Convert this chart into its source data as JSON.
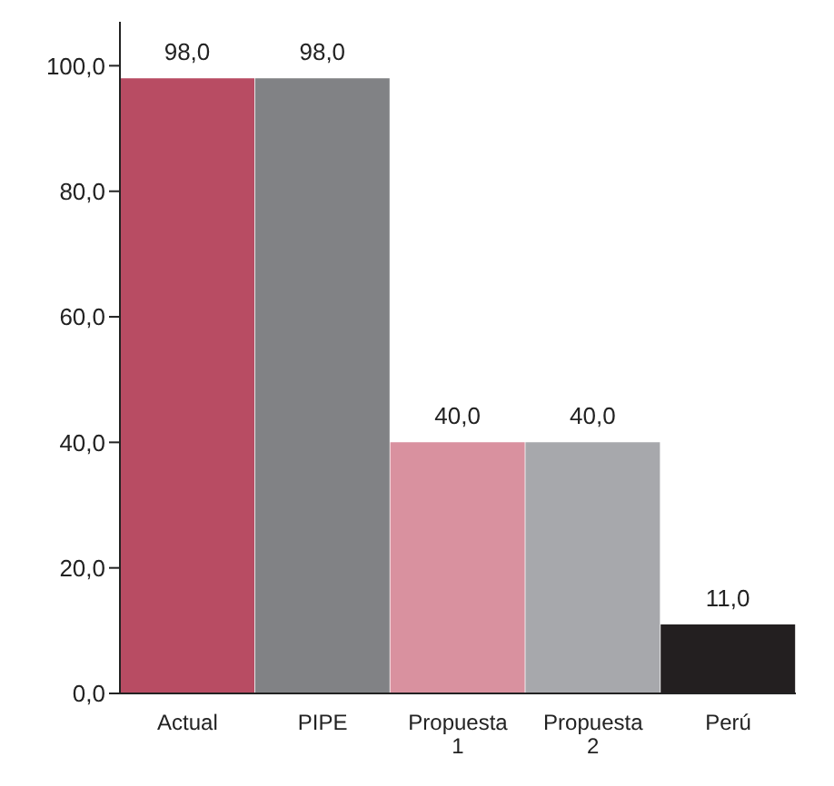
{
  "chart_data": {
    "type": "bar",
    "categories": [
      "Actual",
      "PIPE",
      "Propuesta 1",
      "Propuesta 2",
      "Perú"
    ],
    "values": [
      98,
      98,
      40,
      40,
      11
    ],
    "colors": [
      "#b84c63",
      "#818285",
      "#d9919f",
      "#a7a8ac",
      "#231f20"
    ],
    "value_labels": [
      "98,0",
      "98,0",
      "40,0",
      "40,0",
      "11,0"
    ],
    "ylim": [
      0,
      107
    ],
    "yticks": [
      {
        "value": 0,
        "label": "0,0"
      },
      {
        "value": 20,
        "label": "20,0"
      },
      {
        "value": 40,
        "label": "40,0"
      },
      {
        "value": 60,
        "label": "60,0"
      },
      {
        "value": 80,
        "label": "80,0"
      },
      {
        "value": 100,
        "label": "100,0"
      }
    ],
    "grid": false
  }
}
